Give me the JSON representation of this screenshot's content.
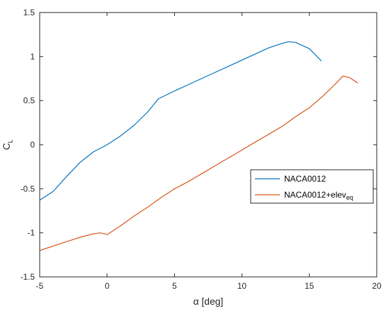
{
  "chart_data": {
    "type": "line",
    "xlabel": "α [deg]",
    "ylabel_base": "C",
    "ylabel_sub": "L",
    "xlim": [
      -5,
      20
    ],
    "ylim": [
      -1.5,
      1.5
    ],
    "xticks": [
      -5,
      0,
      5,
      10,
      15,
      20
    ],
    "yticks": [
      -1.5,
      -1,
      -0.5,
      0,
      0.5,
      1,
      1.5
    ],
    "grid": false,
    "legend_position": "right",
    "series": [
      {
        "name": "NACA0012",
        "name_sub": "",
        "color": "#0072BD",
        "x": [
          -5,
          -4,
          -3,
          -2,
          -1,
          0,
          1,
          2,
          3,
          3.8,
          5,
          6,
          7,
          8,
          9,
          10,
          11,
          12,
          13,
          13.5,
          14,
          15,
          15.9
        ],
        "y": [
          -0.63,
          -0.53,
          -0.36,
          -0.2,
          -0.08,
          0.0,
          0.1,
          0.22,
          0.37,
          0.52,
          0.61,
          0.68,
          0.75,
          0.82,
          0.89,
          0.96,
          1.03,
          1.1,
          1.15,
          1.17,
          1.16,
          1.09,
          0.95
        ]
      },
      {
        "name": "NACA0012+elev",
        "name_sub": "eq",
        "color": "#D95319",
        "x": [
          -5,
          -4,
          -3,
          -2,
          -1,
          -0.5,
          0,
          1,
          2,
          3,
          4,
          5,
          6,
          7,
          8,
          9,
          10,
          11,
          12,
          13,
          14,
          15,
          16,
          17,
          17.5,
          18,
          18.6
        ],
        "y": [
          -1.2,
          -1.15,
          -1.1,
          -1.05,
          -1.01,
          -1.0,
          -1.02,
          -0.92,
          -0.81,
          -0.71,
          -0.6,
          -0.5,
          -0.42,
          -0.33,
          -0.24,
          -0.15,
          -0.06,
          0.03,
          0.12,
          0.21,
          0.32,
          0.42,
          0.55,
          0.7,
          0.78,
          0.76,
          0.7
        ]
      }
    ]
  }
}
